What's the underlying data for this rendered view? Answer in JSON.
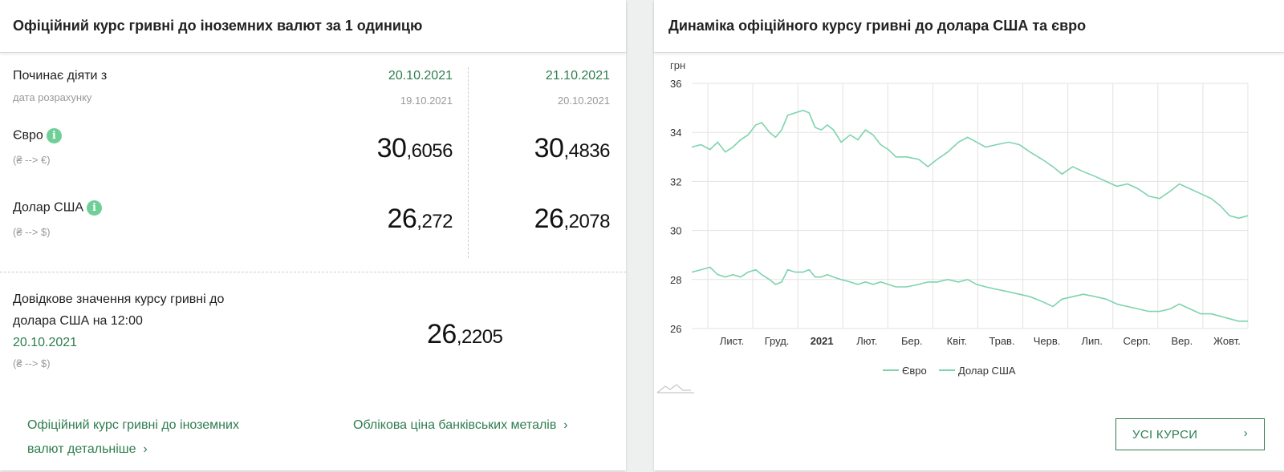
{
  "left": {
    "title": "Офіційний курс гривні до іноземних валют за 1 одиницю",
    "effective_label": "Починає діяти з",
    "calc_label": "дата розрахунку",
    "col1": {
      "date": "20.10.2021",
      "calc_date": "19.10.2021"
    },
    "col2": {
      "date": "21.10.2021",
      "calc_date": "20.10.2021"
    },
    "euro": {
      "label": "Євро",
      "dir": "(₴ --> €)",
      "v1_int": "30",
      "v1_frac": ",6056",
      "v2_int": "30",
      "v2_frac": ",4836"
    },
    "usd": {
      "label": "Долар США",
      "dir": "(₴ --> $)",
      "v1_int": "26",
      "v1_frac": ",272",
      "v2_int": "26",
      "v2_frac": ",2078"
    },
    "info_icon": "i",
    "reference": {
      "line1": "Довідкове значення курсу гривні до",
      "line2": "долара США на 12:00",
      "date": "20.10.2021",
      "dir": "(₴ --> $)",
      "v_int": "26",
      "v_frac": ",2205"
    },
    "link1_line1": "Офіційний курс гривні до іноземних",
    "link1_line2": "валют детальніше",
    "link2": "Облікова ціна банківських металів",
    "chevron": "›"
  },
  "right": {
    "title": "Динаміка офіційного курсу гривні до долара США та євро",
    "button_label": "УСІ КУРСИ",
    "chevron": "›"
  },
  "chart_data": {
    "type": "line",
    "ylabel": "грн",
    "ylim": [
      26,
      36
    ],
    "yticks": [
      36,
      34,
      32,
      30,
      28,
      26
    ],
    "grid": true,
    "legend_placement": "bottom",
    "x_tick_labels": [
      "Лист.",
      "Груд.",
      "2021",
      "Лют.",
      "Бер.",
      "Квіт.",
      "Трав.",
      "Черв.",
      "Лип.",
      "Серп.",
      "Вер.",
      "Жовт."
    ],
    "x_start": "2020-10-20",
    "x_end": "2021-10-20",
    "series": [
      {
        "name": "Євро",
        "color": "#7ed3ad",
        "points": [
          [
            "2020-10-20",
            33.4
          ],
          [
            "2020-10-26",
            33.5
          ],
          [
            "2020-11-01",
            33.3
          ],
          [
            "2020-11-06",
            33.6
          ],
          [
            "2020-11-11",
            33.2
          ],
          [
            "2020-11-16",
            33.4
          ],
          [
            "2020-11-21",
            33.7
          ],
          [
            "2020-11-26",
            33.9
          ],
          [
            "2020-12-01",
            34.3
          ],
          [
            "2020-12-05",
            34.4
          ],
          [
            "2020-12-10",
            34.0
          ],
          [
            "2020-12-14",
            33.8
          ],
          [
            "2020-12-18",
            34.1
          ],
          [
            "2020-12-22",
            34.7
          ],
          [
            "2020-12-27",
            34.8
          ],
          [
            "2021-01-01",
            34.9
          ],
          [
            "2021-01-05",
            34.8
          ],
          [
            "2021-01-09",
            34.2
          ],
          [
            "2021-01-13",
            34.1
          ],
          [
            "2021-01-17",
            34.3
          ],
          [
            "2021-01-21",
            34.1
          ],
          [
            "2021-01-26",
            33.6
          ],
          [
            "2021-02-01",
            33.9
          ],
          [
            "2021-02-06",
            33.7
          ],
          [
            "2021-02-11",
            34.1
          ],
          [
            "2021-02-16",
            33.9
          ],
          [
            "2021-02-21",
            33.5
          ],
          [
            "2021-02-26",
            33.3
          ],
          [
            "2021-03-03",
            33.0
          ],
          [
            "2021-03-10",
            33.0
          ],
          [
            "2021-03-18",
            32.9
          ],
          [
            "2021-03-24",
            32.6
          ],
          [
            "2021-03-30",
            32.9
          ],
          [
            "2021-04-06",
            33.2
          ],
          [
            "2021-04-13",
            33.6
          ],
          [
            "2021-04-19",
            33.8
          ],
          [
            "2021-04-25",
            33.6
          ],
          [
            "2021-05-01",
            33.4
          ],
          [
            "2021-05-08",
            33.5
          ],
          [
            "2021-05-16",
            33.6
          ],
          [
            "2021-05-23",
            33.5
          ],
          [
            "2021-05-30",
            33.2
          ],
          [
            "2021-06-07",
            32.9
          ],
          [
            "2021-06-14",
            32.6
          ],
          [
            "2021-06-20",
            32.3
          ],
          [
            "2021-06-27",
            32.6
          ],
          [
            "2021-07-04",
            32.4
          ],
          [
            "2021-07-12",
            32.2
          ],
          [
            "2021-07-19",
            32.0
          ],
          [
            "2021-07-26",
            31.8
          ],
          [
            "2021-08-02",
            31.9
          ],
          [
            "2021-08-09",
            31.7
          ],
          [
            "2021-08-16",
            31.4
          ],
          [
            "2021-08-23",
            31.3
          ],
          [
            "2021-08-30",
            31.6
          ],
          [
            "2021-09-05",
            31.9
          ],
          [
            "2021-09-12",
            31.7
          ],
          [
            "2021-09-19",
            31.5
          ],
          [
            "2021-09-26",
            31.3
          ],
          [
            "2021-10-02",
            31.0
          ],
          [
            "2021-10-08",
            30.6
          ],
          [
            "2021-10-14",
            30.5
          ],
          [
            "2021-10-20",
            30.6
          ]
        ]
      },
      {
        "name": "Долар США",
        "color": "#7ed3ad",
        "points": [
          [
            "2020-10-20",
            28.3
          ],
          [
            "2020-10-26",
            28.4
          ],
          [
            "2020-11-01",
            28.5
          ],
          [
            "2020-11-06",
            28.2
          ],
          [
            "2020-11-11",
            28.1
          ],
          [
            "2020-11-16",
            28.2
          ],
          [
            "2020-11-21",
            28.1
          ],
          [
            "2020-11-26",
            28.3
          ],
          [
            "2020-12-01",
            28.4
          ],
          [
            "2020-12-05",
            28.2
          ],
          [
            "2020-12-10",
            28.0
          ],
          [
            "2020-12-14",
            27.8
          ],
          [
            "2020-12-18",
            27.9
          ],
          [
            "2020-12-22",
            28.4
          ],
          [
            "2020-12-27",
            28.3
          ],
          [
            "2021-01-01",
            28.3
          ],
          [
            "2021-01-05",
            28.4
          ],
          [
            "2021-01-09",
            28.1
          ],
          [
            "2021-01-13",
            28.1
          ],
          [
            "2021-01-17",
            28.2
          ],
          [
            "2021-01-21",
            28.1
          ],
          [
            "2021-01-26",
            28.0
          ],
          [
            "2021-02-01",
            27.9
          ],
          [
            "2021-02-06",
            27.8
          ],
          [
            "2021-02-11",
            27.9
          ],
          [
            "2021-02-16",
            27.8
          ],
          [
            "2021-02-21",
            27.9
          ],
          [
            "2021-02-26",
            27.8
          ],
          [
            "2021-03-03",
            27.7
          ],
          [
            "2021-03-10",
            27.7
          ],
          [
            "2021-03-18",
            27.8
          ],
          [
            "2021-03-24",
            27.9
          ],
          [
            "2021-03-30",
            27.9
          ],
          [
            "2021-04-06",
            28.0
          ],
          [
            "2021-04-13",
            27.9
          ],
          [
            "2021-04-19",
            28.0
          ],
          [
            "2021-04-25",
            27.8
          ],
          [
            "2021-05-01",
            27.7
          ],
          [
            "2021-05-08",
            27.6
          ],
          [
            "2021-05-16",
            27.5
          ],
          [
            "2021-05-23",
            27.4
          ],
          [
            "2021-05-30",
            27.3
          ],
          [
            "2021-06-07",
            27.1
          ],
          [
            "2021-06-14",
            26.9
          ],
          [
            "2021-06-20",
            27.2
          ],
          [
            "2021-06-27",
            27.3
          ],
          [
            "2021-07-04",
            27.4
          ],
          [
            "2021-07-12",
            27.3
          ],
          [
            "2021-07-19",
            27.2
          ],
          [
            "2021-07-26",
            27.0
          ],
          [
            "2021-08-02",
            26.9
          ],
          [
            "2021-08-09",
            26.8
          ],
          [
            "2021-08-16",
            26.7
          ],
          [
            "2021-08-23",
            26.7
          ],
          [
            "2021-08-30",
            26.8
          ],
          [
            "2021-09-05",
            27.0
          ],
          [
            "2021-09-12",
            26.8
          ],
          [
            "2021-09-19",
            26.6
          ],
          [
            "2021-09-26",
            26.6
          ],
          [
            "2021-10-02",
            26.5
          ],
          [
            "2021-10-08",
            26.4
          ],
          [
            "2021-10-14",
            26.3
          ],
          [
            "2021-10-20",
            26.3
          ]
        ]
      }
    ]
  }
}
